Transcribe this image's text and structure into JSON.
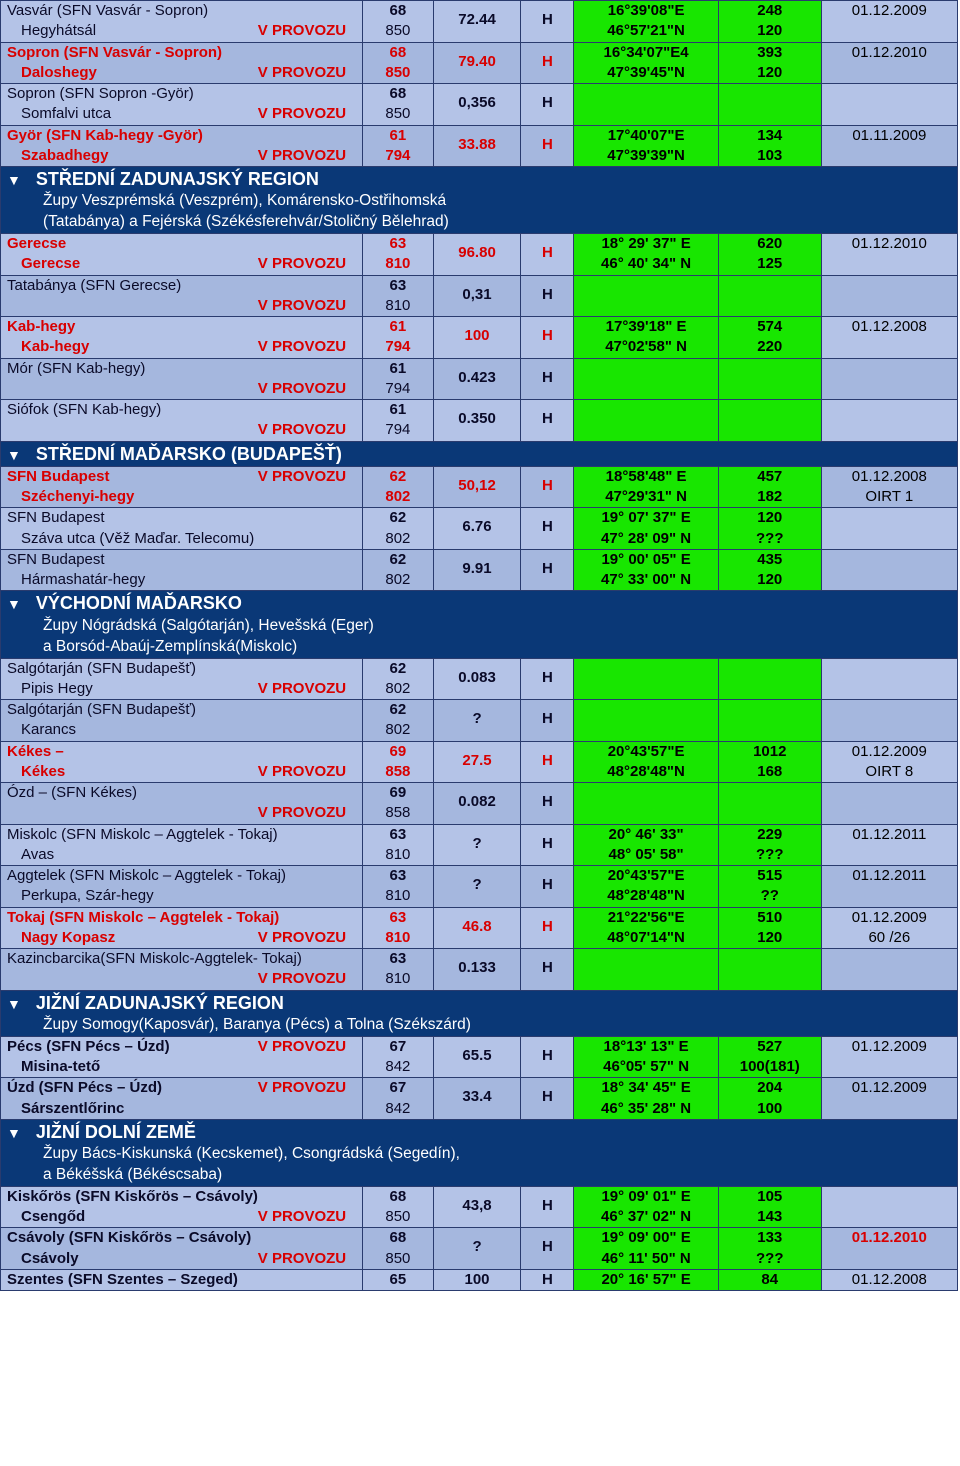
{
  "status_label": "V PROVOZU",
  "colors": {
    "row_alt1": "#b4c3e7",
    "row_alt2": "#a5b7de",
    "green": "#18e600",
    "header": "#0a3877",
    "red": "#d80000"
  },
  "rows": [
    {
      "type": "data",
      "alt": 1,
      "l1": "Vasvár (SFN Vasvár - Sopron)",
      "l2": "Hegyhátsál",
      "stat": true,
      "fc1": "68",
      "fc2": "850",
      "erp": "72.44",
      "pol": "H",
      "coord1": "16°39'08\"E",
      "coord2": "46°57'21\"N",
      "el1": "248",
      "el2": "120",
      "d1": "01.12.2009",
      "d2": "",
      "red": false
    },
    {
      "type": "data",
      "alt": 2,
      "l1": "Sopron   (SFN Vasvár - Sopron)",
      "l2": "Daloshegy",
      "stat": true,
      "fc1": "68",
      "fc2": "850",
      "erp": "79.40",
      "pol": "H",
      "coord1": "16°34'07\"E4",
      "coord2": "47°39'45\"N",
      "el1": "393",
      "el2": "120",
      "d1": "01.12.2010",
      "d2": "",
      "red": true
    },
    {
      "type": "data",
      "alt": 1,
      "l1": "Sopron   (SFN Sopron -Györ)",
      "l2": "Somfalvi utca",
      "stat": true,
      "fc1": "68",
      "fc2": "850",
      "erp": "0,356",
      "pol": "H",
      "coord1": "",
      "coord2": "",
      "el1": "",
      "el2": "",
      "d1": "",
      "d2": "",
      "red": false
    },
    {
      "type": "data",
      "alt": 2,
      "l1": "Györ  (SFN  Kab-hegy -Györ)",
      "l2": "Szabadhegy",
      "stat": true,
      "fc1": "61",
      "fc2": "794",
      "erp": "33.88",
      "pol": "H",
      "coord1": "17°40'07\"E",
      "coord2": "47°39'39\"N",
      "el1": "134",
      "el2": "103",
      "d1": "01.11.2009",
      "d2": "",
      "red": true
    },
    {
      "type": "header",
      "title": "STŘEDNÍ  ZADUNAJSKÝ REGION",
      "sub": "Župy Veszprémská (Veszprém), Komárensko-Ostřihomská\n(Tatabánya) a Fejérská (Székésferehvár/Stoličný Bělehrad)"
    },
    {
      "type": "data",
      "alt": 1,
      "l1": "Gerecse",
      "l2": "Gerecse",
      "stat": true,
      "fc1": "63",
      "fc2": "810",
      "erp": "96.80",
      "pol": "H",
      "coord1": "18° 29' 37\" E",
      "coord2": "46° 40' 34\" N",
      "el1": "620",
      "el2": "125",
      "d1": "01.12.2010",
      "d2": "",
      "red": true
    },
    {
      "type": "data",
      "alt": 2,
      "l1": "Tatabánya  (SFN  Gerecse)",
      "l2": "",
      "stat": true,
      "fc1": "63",
      "fc2": "810",
      "erp": "0,31",
      "pol": "H",
      "coord1": "",
      "coord2": "",
      "el1": "",
      "el2": "",
      "d1": "",
      "d2": "",
      "red": false
    },
    {
      "type": "data",
      "alt": 1,
      "l1": "Kab-hegy",
      "l2": "Kab-hegy",
      "stat": true,
      "fc1": "61",
      "fc2": "794",
      "erp": "100",
      "pol": "H",
      "coord1": "17°39'18\" E",
      "coord2": "47°02'58\" N",
      "el1": "574",
      "el2": "220",
      "d1": "01.12.2008",
      "d2": "",
      "red": true
    },
    {
      "type": "data",
      "alt": 2,
      "l1": "Mór (SFN  Kab-hegy)",
      "l2": "",
      "stat": true,
      "fc1": "61",
      "fc2": "794",
      "erp": "0.423",
      "pol": "H",
      "coord1": "",
      "coord2": "",
      "el1": "",
      "el2": "",
      "d1": "",
      "d2": "",
      "red": false
    },
    {
      "type": "data",
      "alt": 1,
      "l1": "Siófok (SFN  Kab-hegy)",
      "l2": "",
      "stat": true,
      "fc1": "61",
      "fc2": "794",
      "erp": "0.350",
      "pol": "H",
      "coord1": "",
      "coord2": "",
      "el1": "",
      "el2": "",
      "d1": "",
      "d2": "",
      "red": false
    },
    {
      "type": "header",
      "title": "STŘEDNÍ MAĎARSKO (BUDAPEŠŤ)",
      "sub": ""
    },
    {
      "type": "data",
      "alt": 2,
      "l1": "SFN Budapest",
      "l1stat": true,
      "l2": "Széchenyi-hegy",
      "stat": false,
      "fc1": "62",
      "fc2": "802",
      "erp": "50,12",
      "pol": "H",
      "coord1": "18°58'48\" E",
      "coord2": "47°29'31\" N",
      "el1": "457",
      "el2": "182",
      "d1": "01.12.2008",
      "d2": "OIRT 1",
      "red": true
    },
    {
      "type": "data",
      "alt": 1,
      "l1": "SFN Budapest",
      "l2": "Száva utca (Věž Maďar. Telecomu)",
      "stat": false,
      "fc1": "62",
      "fc2": "802",
      "erp": "6.76",
      "pol": "H",
      "coord1": "19° 07' 37\"  E",
      "coord2": "47° 28' 09\" N",
      "el1": "120",
      "el2": "???",
      "d1": "",
      "d2": "",
      "red": false
    },
    {
      "type": "data",
      "alt": 2,
      "l1": "SFN Budapest",
      "l2": "Hármashatár-hegy",
      "stat": false,
      "fc1": "62",
      "fc2": "802",
      "erp": "9.91",
      "pol": "H",
      "coord1": "19° 00' 05\" E",
      "coord2": "47° 33' 00\" N",
      "el1": "435",
      "el2": "120",
      "d1": "",
      "d2": "",
      "red": false,
      "bold": true
    },
    {
      "type": "header",
      "title": "VÝCHODNÍ MAĎARSKO",
      "sub": "Župy Nógrádská (Salgótarján), Hevešská (Eger)\na Borsód-Abaúj-Zemplínská(Miskolc)"
    },
    {
      "type": "data",
      "alt": 1,
      "l1": "Salgótarján (SFN  Budapešť)",
      "l2": "Pipis Hegy",
      "stat": true,
      "fc1": "62",
      "fc2": "802",
      "erp": "0.083",
      "pol": "H",
      "coord1": "",
      "coord2": "",
      "el1": "",
      "el2": "",
      "d1": "",
      "d2": "",
      "red": false
    },
    {
      "type": "data",
      "alt": 2,
      "l1": "Salgótarján (SFN Budapešť)",
      "l2": "Karancs",
      "stat": false,
      "fc1": "62",
      "fc2": "802",
      "erp": "?",
      "pol": "H",
      "coord1": "",
      "coord2": "",
      "el1": "",
      "el2": "",
      "d1": "",
      "d2": "",
      "red": false
    },
    {
      "type": "data",
      "alt": 1,
      "l1": "Kékes –",
      "l2": "Kékes",
      "stat": true,
      "fc1": "69",
      "fc2": "858",
      "erp": "27.5",
      "pol": "H",
      "coord1": "20°43'57\"E",
      "coord2": "48°28'48\"N",
      "el1": "1012",
      "el2": "168",
      "d1": "01.12.2009",
      "d2": "OIRT 8",
      "red": true
    },
    {
      "type": "data",
      "alt": 2,
      "l1": "Ózd – (SFN Kékes)",
      "l2": "",
      "stat": true,
      "fc1": "69",
      "fc2": "858",
      "erp": "0.082",
      "pol": "H",
      "coord1": "",
      "coord2": "",
      "el1": "",
      "el2": "",
      "d1": "",
      "d2": "",
      "red": false
    },
    {
      "type": "data",
      "alt": 1,
      "l1": "Miskolc (SFN Miskolc – Aggtelek - Tokaj)",
      "l2": "Avas",
      "stat": false,
      "fc1": "63",
      "fc2": "810",
      "erp": "?",
      "pol": "H",
      "coord1": "20° 46' 33\"",
      "coord2": "48° 05' 58\"",
      "el1": "229",
      "el2": "???",
      "d1": "01.12.2011",
      "d2": "",
      "red": false
    },
    {
      "type": "data",
      "alt": 2,
      "l1": "Aggtelek (SFN Miskolc – Aggtelek - Tokaj)",
      "l2": "Perkupa, Szár-hegy",
      "stat": false,
      "fc1": "63",
      "fc2": "810",
      "erp": "?",
      "pol": "H",
      "coord1": "20°43'57\"E",
      "coord2": "48°28'48\"N",
      "el1": "515",
      "el2": "??",
      "d1": "01.12.2011",
      "d2": "",
      "red": false
    },
    {
      "type": "data",
      "alt": 1,
      "l1": "Tokaj    (SFN Miskolc – Aggtelek - Tokaj)",
      "l2": "Nagy Kopasz",
      "stat": true,
      "fc1": "63",
      "fc2": "810",
      "erp": "46.8",
      "pol": "H",
      "coord1": "21°22'56\"E",
      "coord2": "48°07'14\"N",
      "el1": "510",
      "el2": "120",
      "d1": "01.12.2009",
      "d2": "60 /26",
      "red": true
    },
    {
      "type": "data",
      "alt": 2,
      "l1": "Kazincbarcika(SFN Miskolc-Aggtelek- Tokaj)",
      "l2": "",
      "stat": true,
      "fc1": "63",
      "fc2": "810",
      "erp": "0.133",
      "pol": "H",
      "coord1": "",
      "coord2": "",
      "el1": "",
      "el2": "",
      "d1": "",
      "d2": "",
      "red": false
    },
    {
      "type": "header",
      "title": "JIŽNÍ ZADUNAJSKÝ REGION",
      "sub": "Župy Somogy(Kaposvár), Baranya (Pécs) a Tolna (Székszárd)"
    },
    {
      "type": "data",
      "alt": 1,
      "l1": "Pécs  (SFN Pécs – Úzd)",
      "l1stat": true,
      "l2": "Misina-tető",
      "stat": false,
      "fc1": "67",
      "fc2": "842",
      "erp": "65.5",
      "pol": "H",
      "coord1": "18°13' 13\" E",
      "coord2": "46°05' 57\" N",
      "el1": "527",
      "el2": "100(181)",
      "d1": "01.12.2009",
      "d2": "",
      "red": false,
      "boldname": true
    },
    {
      "type": "data",
      "alt": 2,
      "l1": "Úzd (SFN Pécs – Úzd)",
      "l1stat": true,
      "l2": "Sárszentlőrinc",
      "stat": false,
      "fc1": "67",
      "fc2": "842",
      "erp": "33.4",
      "pol": "H",
      "coord1": "18° 34' 45\" E",
      "coord2": "46° 35' 28\" N",
      "el1": "204",
      "el2": "100",
      "d1": "01.12.2009",
      "d2": "",
      "red": false,
      "boldname": true
    },
    {
      "type": "header",
      "title": "JIŽNÍ DOLNÍ ZEMĚ",
      "sub": "Župy Bács-Kiskunská (Kecskemet), Csongrádská (Segedín),\na Békéšská (Békéscsaba)"
    },
    {
      "type": "data",
      "alt": 1,
      "l1": "Kiskőrös  (SFN Kiskőrös – Csávoly)",
      "l2": "Csengőd",
      "stat": true,
      "fc1": "68",
      "fc2": "850",
      "erp": "43,8",
      "pol": "H",
      "coord1": "19° 09' 01\" E",
      "coord2": "46° 37' 02\" N",
      "el1": "105",
      "el2": "143",
      "d1": "",
      "d2": "",
      "red": false,
      "boldname": true
    },
    {
      "type": "data",
      "alt": 2,
      "l1": "Csávoly  (SFN Kiskőrös – Csávoly)",
      "l2": "Csávoly",
      "stat": true,
      "fc1": "68",
      "fc2": "850",
      "erp": "?",
      "pol": "H",
      "coord1": "19° 09' 00\" E",
      "coord2": "46° 11' 50\" N",
      "el1": "133",
      "el2": "???",
      "d1": "01.12.2010",
      "d2": "",
      "red": false,
      "boldname": true,
      "dred": true
    },
    {
      "type": "data",
      "alt": 1,
      "l1": "Szentes   (SFN Szentes – Szeged)",
      "l2": "",
      "stat": false,
      "fc1": "65",
      "fc2": "",
      "erp": "100",
      "pol": "H",
      "coord1": "20° 16' 57\" E",
      "coord2": "",
      "el1": "84",
      "el2": "",
      "d1": "01.12.2008",
      "d2": "",
      "red": false,
      "boldname": true,
      "single": true
    }
  ]
}
